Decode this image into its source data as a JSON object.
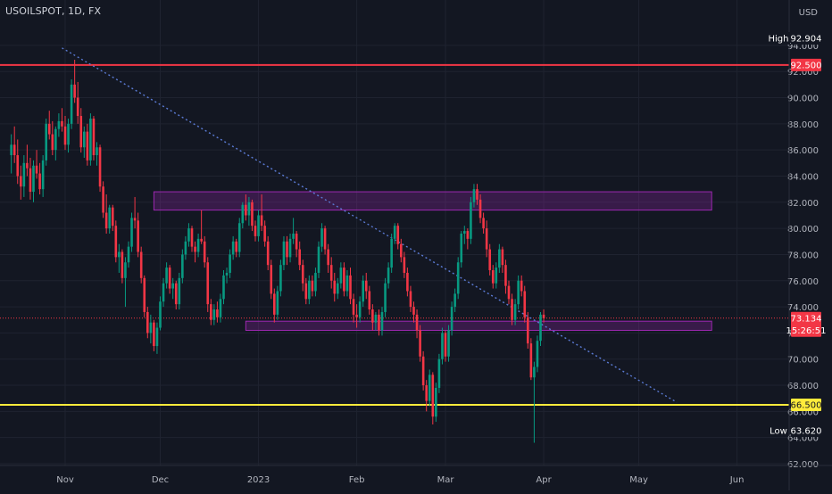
{
  "header": {
    "symbol": "USOILSPOT, 1D, FX"
  },
  "chart_data": {
    "type": "candlestick",
    "currency": "USD",
    "y_ticks": [
      "94.000",
      "92.000",
      "90.000",
      "88.000",
      "86.000",
      "84.000",
      "82.000",
      "80.000",
      "78.000",
      "76.000",
      "74.000",
      "72.000",
      "70.000",
      "68.000",
      "66.000",
      "64.000",
      "62.000"
    ],
    "x_ticks": [
      "Nov",
      "Dec",
      "2023",
      "Feb",
      "Mar",
      "Apr",
      "May",
      "Jun"
    ],
    "ylim": [
      61.3,
      95.2
    ],
    "start_day": 0,
    "end_day": 217,
    "x_tick_days": [
      0,
      30,
      61,
      92,
      120,
      151,
      181,
      212
    ],
    "high": {
      "label": "High",
      "value": "92.904"
    },
    "low": {
      "label": "Low",
      "value": "63.620"
    },
    "levels": [
      {
        "value": 92.5,
        "label": "92.500",
        "color": "#f23645"
      },
      {
        "value": 66.5,
        "label": "66.500",
        "color": "#ffeb3b"
      }
    ],
    "last": {
      "value": 73.134,
      "label": "73.134",
      "countdown": "15:26:51",
      "color": "#f23645"
    },
    "zones": [
      {
        "x0": 28,
        "x1": 204,
        "y0": 81.4,
        "y1": 82.8,
        "color": "#9c27b0"
      },
      {
        "x0": 57,
        "x1": 204,
        "y0": 72.2,
        "y1": 72.9,
        "color": "#9c27b0"
      }
    ],
    "trendline": {
      "x0": -1,
      "y0": 93.8,
      "x1": 193,
      "y1": 66.7,
      "color": "#5b7bd5"
    },
    "colors": {
      "up": "#089981",
      "down": "#f23645"
    },
    "candles": [
      [
        -17,
        85.6,
        87.2,
        84.2,
        86.4
      ],
      [
        -16,
        86.4,
        87.8,
        85.0,
        85.6
      ],
      [
        -15,
        85.6,
        86.8,
        83.4,
        84.0
      ],
      [
        -14,
        84.0,
        84.8,
        82.2,
        83.2
      ],
      [
        -13,
        83.2,
        85.6,
        82.4,
        85.0
      ],
      [
        -12,
        85.0,
        86.4,
        84.0,
        84.6
      ],
      [
        -11,
        84.6,
        85.4,
        82.2,
        82.8
      ],
      [
        -10,
        82.8,
        85.2,
        82.0,
        84.8
      ],
      [
        -9,
        84.8,
        86.0,
        83.8,
        84.2
      ],
      [
        -8,
        84.2,
        85.0,
        82.6,
        83.0
      ],
      [
        -7,
        83.0,
        85.6,
        82.4,
        85.2
      ],
      [
        -6,
        85.2,
        88.4,
        84.8,
        88.0
      ],
      [
        -5,
        88.0,
        89.0,
        86.8,
        87.2
      ],
      [
        -4,
        87.2,
        88.2,
        85.6,
        86.0
      ],
      [
        -3,
        86.0,
        87.8,
        85.2,
        87.6
      ],
      [
        -2,
        87.6,
        88.8,
        87.0,
        88.2
      ],
      [
        -1,
        88.2,
        89.2,
        87.4,
        87.8
      ],
      [
        0,
        87.8,
        88.6,
        86.0,
        86.4
      ],
      [
        1,
        86.4,
        88.4,
        85.8,
        88.0
      ],
      [
        2,
        88.0,
        91.4,
        87.6,
        91.0
      ],
      [
        3,
        91.0,
        92.9,
        89.6,
        90.0
      ],
      [
        4,
        90.0,
        91.2,
        88.0,
        88.6
      ],
      [
        5,
        88.6,
        89.2,
        85.8,
        86.2
      ],
      [
        6,
        86.2,
        87.8,
        85.4,
        87.4
      ],
      [
        7,
        87.4,
        88.0,
        84.8,
        85.2
      ],
      [
        8,
        85.2,
        88.8,
        84.8,
        88.4
      ],
      [
        9,
        88.4,
        88.6,
        85.2,
        85.6
      ],
      [
        10,
        85.6,
        86.6,
        84.8,
        86.2
      ],
      [
        11,
        86.2,
        86.4,
        82.8,
        83.2
      ],
      [
        12,
        83.2,
        83.6,
        80.8,
        81.2
      ],
      [
        13,
        81.2,
        82.6,
        79.6,
        80.0
      ],
      [
        14,
        80.0,
        81.8,
        79.6,
        81.6
      ],
      [
        15,
        81.6,
        81.8,
        79.8,
        80.2
      ],
      [
        16,
        80.2,
        80.6,
        77.4,
        77.8
      ],
      [
        17,
        77.8,
        78.8,
        76.6,
        78.2
      ],
      [
        18,
        78.2,
        78.4,
        75.8,
        76.2
      ],
      [
        19,
        76.2,
        77.8,
        74.0,
        77.4
      ],
      [
        20,
        77.4,
        79.0,
        77.0,
        78.6
      ],
      [
        21,
        78.6,
        81.2,
        78.2,
        80.8
      ],
      [
        22,
        80.8,
        82.4,
        80.0,
        80.6
      ],
      [
        23,
        80.6,
        81.2,
        77.8,
        78.2
      ],
      [
        24,
        78.2,
        78.6,
        75.8,
        76.2
      ],
      [
        25,
        76.2,
        76.4,
        73.2,
        73.6
      ],
      [
        26,
        73.6,
        74.0,
        71.6,
        72.0
      ],
      [
        27,
        72.0,
        73.4,
        71.2,
        72.8
      ],
      [
        28,
        72.8,
        73.0,
        70.6,
        71.0
      ],
      [
        29,
        71.0,
        72.8,
        70.4,
        72.4
      ],
      [
        30,
        72.4,
        74.8,
        72.2,
        74.4
      ],
      [
        31,
        74.4,
        76.2,
        74.0,
        75.8
      ],
      [
        32,
        75.8,
        77.4,
        75.4,
        77.0
      ],
      [
        33,
        77.0,
        77.2,
        75.0,
        75.4
      ],
      [
        34,
        75.4,
        76.2,
        74.6,
        75.8
      ],
      [
        35,
        75.8,
        76.0,
        73.8,
        74.2
      ],
      [
        36,
        74.2,
        76.6,
        73.8,
        76.2
      ],
      [
        37,
        76.2,
        78.4,
        75.8,
        78.0
      ],
      [
        38,
        78.0,
        79.4,
        77.6,
        79.0
      ],
      [
        39,
        79.0,
        80.4,
        78.6,
        80.0
      ],
      [
        40,
        80.0,
        80.2,
        78.2,
        78.6
      ],
      [
        41,
        78.6,
        79.0,
        77.4,
        78.2
      ],
      [
        42,
        78.2,
        79.6,
        77.8,
        79.2
      ],
      [
        43,
        79.2,
        81.4,
        78.8,
        79.0
      ],
      [
        44,
        79.0,
        79.4,
        77.0,
        77.4
      ],
      [
        45,
        77.4,
        77.8,
        73.6,
        74.2
      ],
      [
        46,
        74.2,
        74.6,
        72.6,
        73.0
      ],
      [
        47,
        73.0,
        74.2,
        72.6,
        73.8
      ],
      [
        48,
        73.8,
        74.4,
        72.8,
        73.2
      ],
      [
        49,
        73.2,
        75.0,
        72.8,
        74.6
      ],
      [
        50,
        74.6,
        76.8,
        74.2,
        76.4
      ],
      [
        51,
        76.4,
        77.0,
        75.8,
        76.6
      ],
      [
        52,
        76.6,
        78.4,
        76.2,
        78.0
      ],
      [
        53,
        78.0,
        79.4,
        77.6,
        79.0
      ],
      [
        54,
        79.0,
        79.2,
        77.8,
        78.2
      ],
      [
        55,
        78.2,
        80.8,
        77.8,
        80.4
      ],
      [
        56,
        80.4,
        82.0,
        80.0,
        81.8
      ],
      [
        57,
        81.8,
        82.6,
        80.6,
        81.0
      ],
      [
        58,
        81.0,
        82.4,
        80.2,
        82.0
      ],
      [
        59,
        82.0,
        82.2,
        79.8,
        80.2
      ],
      [
        60,
        80.2,
        80.6,
        79.0,
        79.4
      ],
      [
        61,
        79.4,
        81.4,
        79.0,
        81.0
      ],
      [
        62,
        81.0,
        82.6,
        79.8,
        80.2
      ],
      [
        63,
        80.2,
        80.6,
        78.6,
        79.0
      ],
      [
        64,
        79.0,
        79.4,
        76.8,
        77.2
      ],
      [
        65,
        77.2,
        77.6,
        74.6,
        75.0
      ],
      [
        66,
        75.0,
        75.4,
        72.8,
        73.4
      ],
      [
        67,
        73.4,
        75.6,
        73.0,
        75.2
      ],
      [
        68,
        75.2,
        77.6,
        74.8,
        77.2
      ],
      [
        69,
        77.2,
        79.4,
        76.8,
        79.0
      ],
      [
        70,
        79.0,
        79.4,
        77.2,
        77.8
      ],
      [
        71,
        77.8,
        79.6,
        77.4,
        79.2
      ],
      [
        72,
        79.2,
        80.8,
        78.8,
        79.6
      ],
      [
        73,
        79.6,
        79.8,
        77.8,
        78.4
      ],
      [
        74,
        78.4,
        79.0,
        76.8,
        77.2
      ],
      [
        75,
        77.2,
        77.6,
        75.2,
        75.8
      ],
      [
        76,
        75.8,
        76.2,
        74.2,
        74.6
      ],
      [
        77,
        74.6,
        76.4,
        74.2,
        76.0
      ],
      [
        78,
        76.0,
        76.4,
        74.8,
        75.2
      ],
      [
        79,
        75.2,
        77.0,
        74.8,
        76.6
      ],
      [
        80,
        76.6,
        79.0,
        76.2,
        78.6
      ],
      [
        81,
        78.6,
        80.4,
        78.2,
        80.0
      ],
      [
        82,
        80.0,
        80.2,
        78.0,
        78.4
      ],
      [
        83,
        78.4,
        78.8,
        76.6,
        77.2
      ],
      [
        84,
        77.2,
        77.8,
        75.4,
        76.0
      ],
      [
        85,
        76.0,
        76.6,
        74.4,
        75.0
      ],
      [
        86,
        75.0,
        76.2,
        74.6,
        75.8
      ],
      [
        87,
        75.8,
        77.4,
        75.4,
        77.0
      ],
      [
        88,
        77.0,
        77.4,
        74.8,
        75.2
      ],
      [
        89,
        75.2,
        76.8,
        74.8,
        76.4
      ],
      [
        90,
        76.4,
        77.0,
        74.2,
        74.6
      ],
      [
        91,
        74.6,
        75.0,
        72.8,
        73.4
      ],
      [
        92,
        73.4,
        74.2,
        72.4,
        73.2
      ],
      [
        93,
        73.2,
        74.8,
        72.8,
        74.4
      ],
      [
        94,
        74.4,
        76.4,
        74.0,
        76.0
      ],
      [
        95,
        76.0,
        76.6,
        74.6,
        75.2
      ],
      [
        96,
        75.2,
        75.6,
        73.4,
        73.8
      ],
      [
        97,
        73.8,
        74.2,
        72.2,
        72.8
      ],
      [
        98,
        72.8,
        73.6,
        72.2,
        73.4
      ],
      [
        99,
        73.4,
        73.8,
        71.8,
        72.2
      ],
      [
        100,
        72.2,
        74.0,
        71.8,
        73.6
      ],
      [
        101,
        73.6,
        76.2,
        73.2,
        75.8
      ],
      [
        102,
        75.8,
        77.4,
        75.4,
        77.0
      ],
      [
        103,
        77.0,
        79.6,
        76.6,
        79.2
      ],
      [
        104,
        79.2,
        80.4,
        78.8,
        80.2
      ],
      [
        105,
        80.2,
        80.4,
        78.4,
        78.8
      ],
      [
        106,
        78.8,
        79.2,
        77.4,
        77.8
      ],
      [
        107,
        77.8,
        78.2,
        76.2,
        76.6
      ],
      [
        108,
        76.6,
        77.0,
        74.8,
        75.2
      ],
      [
        109,
        75.2,
        75.6,
        73.6,
        74.0
      ],
      [
        110,
        74.0,
        74.4,
        72.8,
        73.4
      ],
      [
        111,
        73.4,
        73.8,
        71.6,
        72.2
      ],
      [
        112,
        72.2,
        72.6,
        69.8,
        70.2
      ],
      [
        113,
        70.2,
        70.6,
        67.6,
        68.0
      ],
      [
        114,
        68.0,
        68.4,
        66.0,
        66.8
      ],
      [
        115,
        66.8,
        69.2,
        66.4,
        68.8
      ],
      [
        116,
        68.8,
        69.0,
        65.0,
        65.6
      ],
      [
        117,
        65.6,
        68.2,
        65.2,
        67.8
      ],
      [
        118,
        67.8,
        70.4,
        67.4,
        70.0
      ],
      [
        119,
        70.0,
        72.4,
        69.6,
        72.0
      ],
      [
        120,
        72.0,
        72.2,
        69.8,
        70.2
      ],
      [
        121,
        70.2,
        72.6,
        69.8,
        72.2
      ],
      [
        122,
        72.2,
        74.4,
        71.8,
        74.0
      ],
      [
        123,
        74.0,
        75.4,
        73.6,
        75.0
      ],
      [
        124,
        75.0,
        77.8,
        74.6,
        77.4
      ],
      [
        125,
        77.4,
        79.8,
        77.0,
        79.6
      ],
      [
        126,
        79.6,
        80.2,
        78.8,
        79.8
      ],
      [
        127,
        79.8,
        80.0,
        78.4,
        79.2
      ],
      [
        128,
        79.2,
        82.4,
        78.8,
        82.0
      ],
      [
        129,
        82.0,
        83.4,
        81.6,
        83.0
      ],
      [
        130,
        83.0,
        83.4,
        81.8,
        82.2
      ],
      [
        131,
        82.2,
        82.6,
        80.4,
        80.8
      ],
      [
        132,
        80.8,
        81.2,
        79.6,
        80.0
      ],
      [
        133,
        80.0,
        80.6,
        77.8,
        78.4
      ],
      [
        134,
        78.4,
        78.8,
        76.4,
        76.8
      ],
      [
        135,
        76.8,
        77.2,
        75.4,
        75.8
      ],
      [
        136,
        75.8,
        77.4,
        75.4,
        77.0
      ],
      [
        137,
        77.0,
        78.8,
        76.6,
        78.4
      ],
      [
        138,
        78.4,
        78.6,
        76.6,
        77.2
      ],
      [
        139,
        77.2,
        77.6,
        75.0,
        75.6
      ],
      [
        140,
        75.6,
        76.0,
        74.2,
        74.6
      ],
      [
        141,
        74.6,
        75.0,
        72.6,
        73.0
      ],
      [
        142,
        73.0,
        74.6,
        72.6,
        74.2
      ],
      [
        143,
        74.2,
        76.4,
        73.8,
        76.0
      ],
      [
        144,
        76.0,
        76.4,
        74.8,
        75.2
      ],
      [
        145,
        75.2,
        75.6,
        72.8,
        73.2
      ],
      [
        146,
        73.2,
        73.6,
        70.8,
        71.2
      ],
      [
        147,
        71.2,
        71.6,
        68.4,
        68.6
      ],
      [
        148,
        68.6,
        69.8,
        63.6,
        69.4
      ],
      [
        149,
        69.4,
        71.8,
        69.0,
        71.4
      ],
      [
        150,
        71.4,
        73.6,
        71.0,
        73.4
      ],
      [
        151,
        73.4,
        73.8,
        72.8,
        73.134
      ]
    ]
  }
}
